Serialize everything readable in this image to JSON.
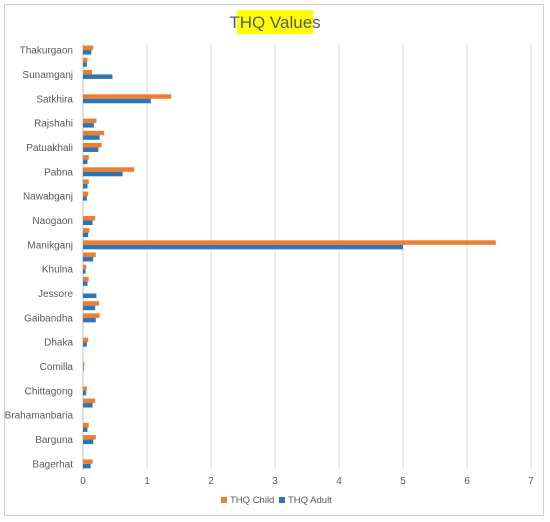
{
  "chart_data": {
    "type": "bar",
    "orientation": "horizontal",
    "title": "THQ Values",
    "title_highlight_color": "#ffff00",
    "xlim": [
      0,
      7
    ],
    "x_ticks": [
      0,
      1,
      2,
      3,
      4,
      5,
      6,
      7
    ],
    "grid": "vertical",
    "legend_placement": "bottom",
    "labeled_categories": [
      "Thakurgaon",
      "Sunamganj",
      "Satkhira",
      "Rajshahi",
      "Patuakhali",
      "Pabna",
      "Nawabganj",
      "Naogaon",
      "Manikganj",
      "Khulna",
      "Jessore",
      "Gaibandha",
      "Dhaka",
      "Comilla",
      "Chittagong",
      "Brahamanbaria",
      "Barguna",
      "Bagerhat"
    ],
    "categories": [
      "Thakurgaon",
      "",
      "Sunamganj",
      "",
      "Satkhira",
      "",
      "Rajshahi",
      "",
      "Patuakhali",
      "",
      "Pabna",
      "",
      "Nawabganj",
      "",
      "Naogaon",
      "",
      "Manikganj",
      "",
      "Khulna",
      "",
      "Jessore",
      "",
      "Gaibandha",
      "",
      "Dhaka",
      "",
      "Comilla",
      "",
      "Chittagong",
      "",
      "Brahamanbaria",
      "",
      "Barguna",
      "",
      "Bagerhat"
    ],
    "series": [
      {
        "name": "THQ Child",
        "color": "#ed7d31",
        "values": [
          0.16,
          0.07,
          0.14,
          0,
          1.38,
          0,
          0.21,
          0.33,
          0.29,
          0.09,
          0.8,
          0.09,
          0.08,
          0,
          0.19,
          0.1,
          6.45,
          0.2,
          0.05,
          0.09,
          0,
          0.25,
          0.26,
          0,
          0.08,
          0,
          0.02,
          0,
          0.06,
          0.19,
          0,
          0.09,
          0.2,
          0,
          0.15
        ]
      },
      {
        "name": "THQ Adult",
        "color": "#2e75b6",
        "values": [
          0.13,
          0.06,
          0.46,
          0,
          1.06,
          0,
          0.17,
          0.26,
          0.24,
          0.07,
          0.62,
          0.07,
          0.06,
          0,
          0.15,
          0.08,
          5.0,
          0.16,
          0.04,
          0.07,
          0.21,
          0.19,
          0.2,
          0,
          0.06,
          0,
          0.01,
          0,
          0.05,
          0.15,
          0,
          0.07,
          0.16,
          0,
          0.12
        ]
      }
    ]
  }
}
